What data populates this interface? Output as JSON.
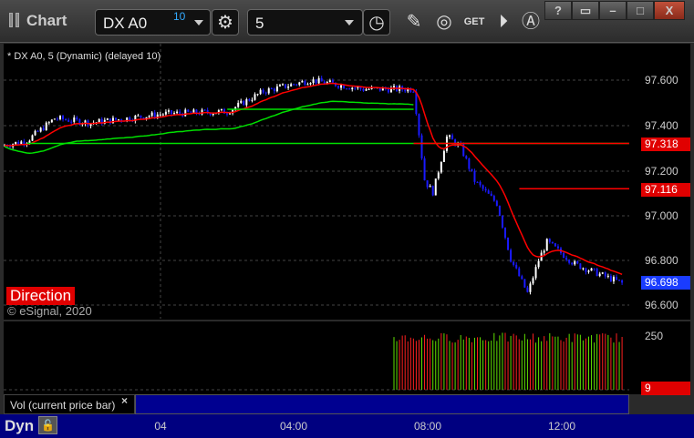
{
  "window": {
    "title": "Chart",
    "buttons": [
      "?",
      "restore-down",
      "minimize",
      "maximize",
      "X"
    ]
  },
  "toolbar": {
    "symbol": "DX A0",
    "delay_badge": "10",
    "interval": "5",
    "icons": [
      "settings-gear-icon",
      "clock-icon",
      "pencil-icon",
      "study-icon",
      "get-icon",
      "play-icon",
      "alert-icon"
    ]
  },
  "chart": {
    "legend": "* DX A0, 5 (Dynamic) (delayed 10)",
    "direction_label": "Direction",
    "copyright": "© eSignal, 2020"
  },
  "volume": {
    "label": "Vol (current price bar)",
    "close": "×",
    "ticks": [
      "250"
    ],
    "last_badge": "9"
  },
  "time_axis": {
    "mode": "Dyn",
    "labels": [
      "04",
      "04:00",
      "08:00",
      "12:00"
    ]
  },
  "colors": {
    "up": "#ffffff",
    "down": "#1a1aff",
    "ma_red": "#ff0000",
    "ma_green": "#00e000",
    "badge_red": "#e00000",
    "badge_blue": "#1a3cff"
  },
  "chart_data": {
    "type": "candlestick",
    "y_ticks": [
      "97.600",
      "97.400",
      "97.200",
      "97.000",
      "96.800",
      "96.600"
    ],
    "ylim": [
      96.55,
      97.75
    ],
    "x_labels": [
      "04",
      "04:00",
      "08:00",
      "12:00"
    ],
    "price_badges": [
      {
        "value": "97.318",
        "color": "red"
      },
      {
        "value": "97.116",
        "color": "red"
      },
      {
        "value": "96.698",
        "color": "blue"
      }
    ],
    "close_path": [
      [
        "19:20",
        97.31
      ],
      [
        "20:00",
        97.33
      ],
      [
        "20:50",
        97.43
      ],
      [
        "21:55",
        97.41
      ],
      [
        "00:05",
        97.45
      ],
      [
        "02:00",
        97.46
      ],
      [
        "03:05",
        97.55
      ],
      [
        "04:30",
        97.6
      ],
      [
        "06:05",
        97.56
      ],
      [
        "07:35",
        97.56
      ],
      [
        "07:55",
        97.15
      ],
      [
        "08:10",
        97.1
      ],
      [
        "08:35",
        97.35
      ],
      [
        "09:00",
        97.3
      ],
      [
        "09:25",
        97.15
      ],
      [
        "10:05",
        97.05
      ],
      [
        "10:30",
        96.8
      ],
      [
        "11:00",
        96.65
      ],
      [
        "11:20",
        96.8
      ],
      [
        "11:35",
        96.88
      ],
      [
        "12:25",
        96.78
      ],
      [
        "13:15",
        96.73
      ],
      [
        "13:55",
        96.69
      ]
    ],
    "red_levels": [
      {
        "value": 97.318,
        "from": "07:35"
      },
      {
        "value": 97.116,
        "from": "10:45"
      }
    ],
    "green_levels": [
      {
        "value": 97.318,
        "from": "20:00"
      },
      {
        "value": 97.47,
        "from": "02:00",
        "to": "07:35"
      }
    ],
    "volume_range": [
      9,
      250
    ]
  }
}
